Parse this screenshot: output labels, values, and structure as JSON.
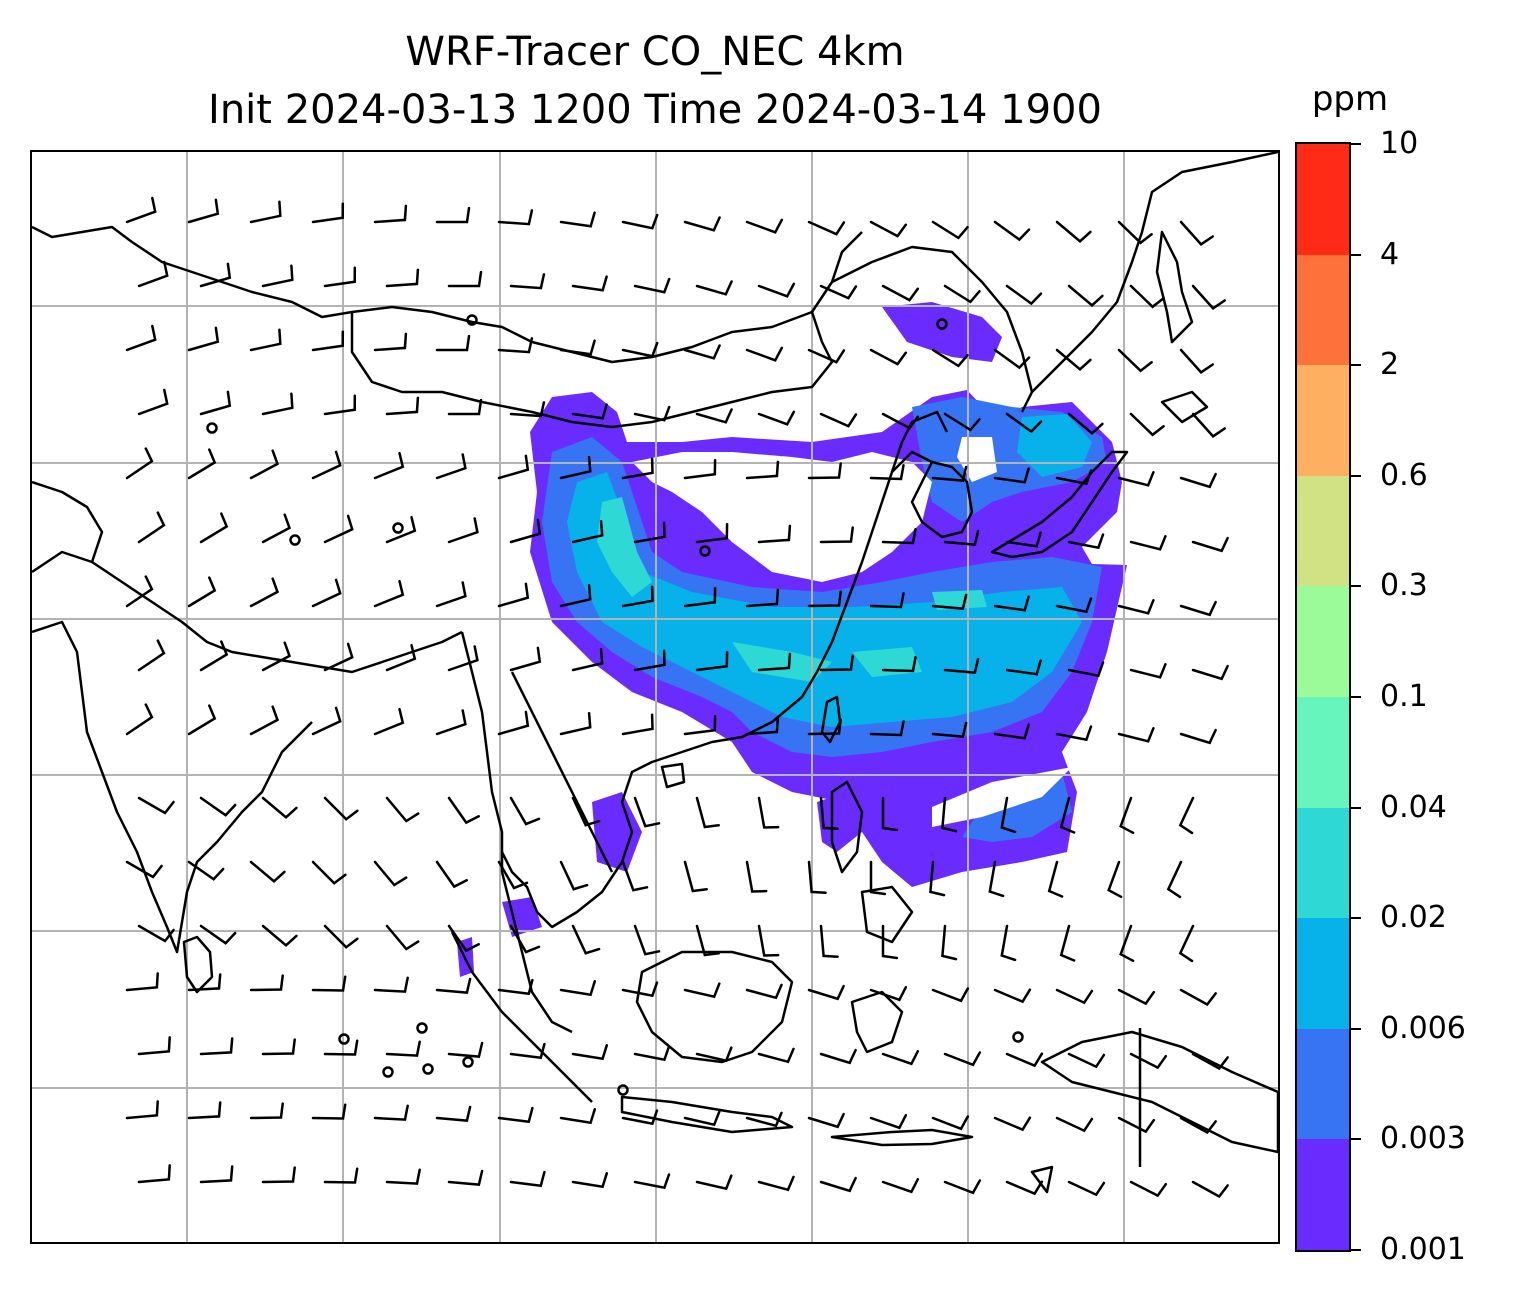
{
  "title": {
    "line1": "WRF-Tracer CO_NEC 4km",
    "line2": "Init 2024-03-13 1200 Time 2024-03-14 1900"
  },
  "colorbar": {
    "unit": "ppm",
    "levels": [
      "0.001",
      "0.003",
      "0.006",
      "0.02",
      "0.04",
      "0.1",
      "0.3",
      "0.6",
      "2",
      "4",
      "10"
    ],
    "colors": [
      "#6a2bff",
      "#3674f4",
      "#07b1ea",
      "#2ed9d5",
      "#66f6bd",
      "#9afb98",
      "#d0e283",
      "#feb060",
      "#ff713b",
      "#ff2b16"
    ]
  },
  "map": {
    "gridlines": true,
    "extent": "East Asia, South Asia and Southeast Asia",
    "plume_description_colors": {
      "outer": "#6a2bff",
      "mid": "#3674f4",
      "core": "#07b1ea",
      "peak": "#2ed9d5"
    }
  }
}
